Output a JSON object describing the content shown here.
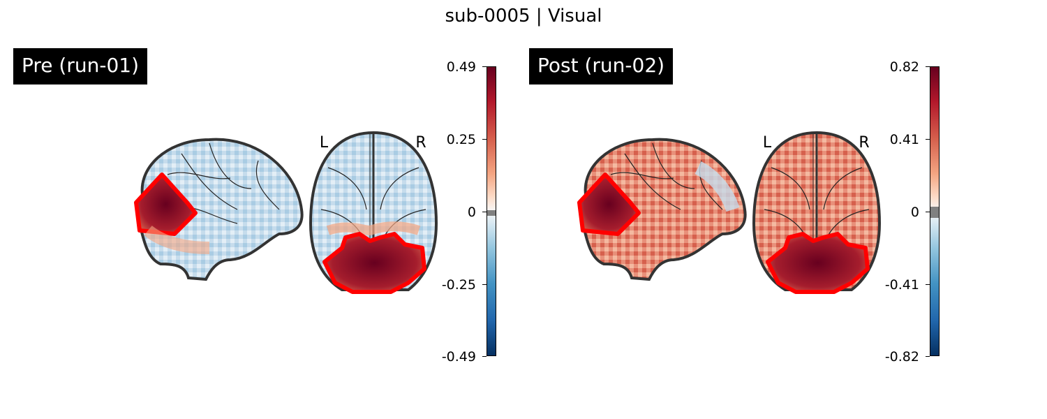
{
  "title": "sub-0005 | Visual",
  "panels": [
    {
      "label": "Pre (run-01)",
      "orientation": {
        "left": "L",
        "right": "R"
      },
      "colorbar": {
        "ticks": [
          "0.49",
          "0.25",
          "0",
          "-0.25",
          "-0.49"
        ],
        "max": 0.49,
        "min": -0.49
      }
    },
    {
      "label": "Post (run-02)",
      "orientation": {
        "left": "L",
        "right": "R"
      },
      "colorbar": {
        "ticks": [
          "0.82",
          "0.41",
          "0",
          "-0.41",
          "-0.82"
        ],
        "max": 0.82,
        "min": -0.82
      }
    }
  ],
  "colors": {
    "roi_outline": "#ff0000",
    "positive_max": "#67001f",
    "negative_max": "#053061",
    "neutral": "#f7f7f7"
  }
}
